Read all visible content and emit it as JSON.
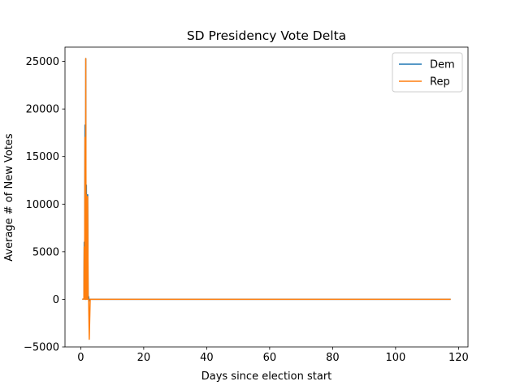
{
  "chart_data": {
    "type": "line",
    "title": "SD Presidency Vote Delta",
    "xlabel": "Days since election start",
    "ylabel": "Average # of New Votes",
    "xlim": [
      -5,
      123
    ],
    "ylim": [
      -5000,
      26500
    ],
    "xticks": [
      0,
      20,
      40,
      60,
      80,
      100,
      120
    ],
    "yticks": [
      -5000,
      0,
      5000,
      10000,
      15000,
      20000,
      25000
    ],
    "grid": false,
    "legend_position": "top-right",
    "series": [
      {
        "name": "Dem",
        "color": "#1f77b4",
        "x": [
          0.5,
          1.0,
          1.1,
          1.2,
          1.35,
          1.5,
          1.6,
          1.7,
          1.8,
          1.9,
          2.0,
          2.1,
          2.2,
          2.35,
          2.5,
          2.7,
          3.0,
          117.5
        ],
        "y": [
          0,
          50,
          6000,
          0,
          18300,
          0,
          25300,
          0,
          12000,
          0,
          9000,
          0,
          11000,
          0,
          300,
          -150,
          0,
          0
        ]
      },
      {
        "name": "Rep",
        "color": "#ff7f0e",
        "x": [
          0.5,
          1.0,
          1.1,
          1.2,
          1.35,
          1.5,
          1.6,
          1.7,
          1.8,
          1.9,
          2.0,
          2.1,
          2.2,
          2.35,
          2.5,
          2.7,
          3.0,
          117.5
        ],
        "y": [
          0,
          50,
          5500,
          0,
          17000,
          0,
          25300,
          0,
          11000,
          0,
          9500,
          0,
          10800,
          0,
          0,
          -4200,
          0,
          0
        ]
      }
    ]
  }
}
